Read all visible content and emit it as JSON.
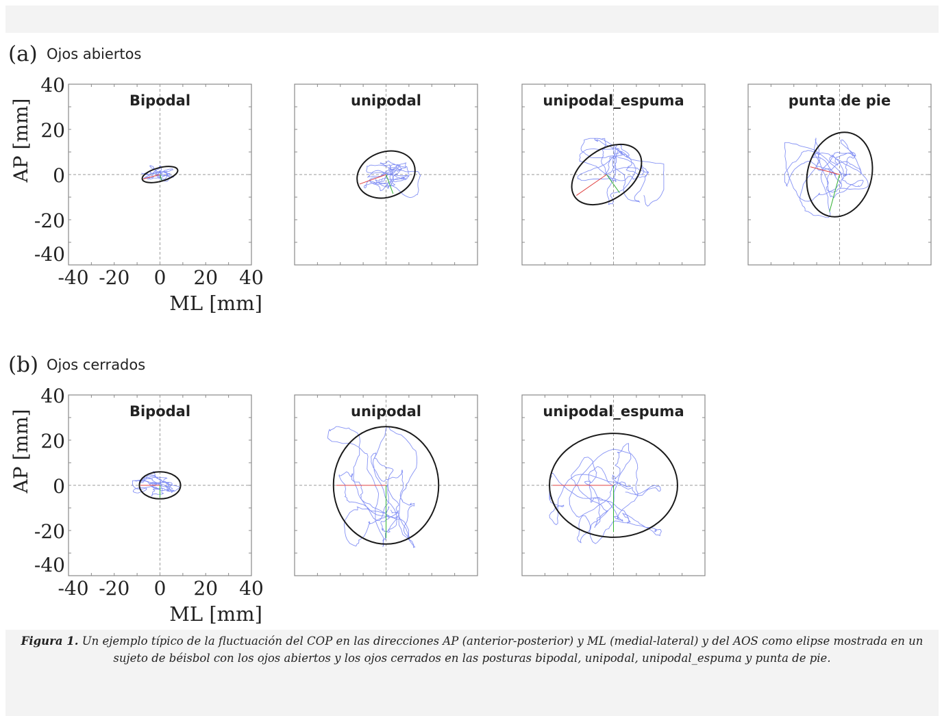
{
  "figure": {
    "caption_label": "Figura 1.",
    "caption_text": " Un ejemplo típico de la fluctuación del COP en las direcciones AP (anterior-posterior) y ML (medial-lateral) y del AOS como elipse mostrada en un sujeto de béisbol con los ojos abiertos y los ojos cerrados en las posturas bipodal, unipodal, unipodal_espuma y punta de pie."
  },
  "colors": {
    "trace": "#5b6cf0",
    "ellipse": "#1a1a1a",
    "axes": "#888888",
    "crosshair": "#9a9a9a",
    "marker_red": "#e04040",
    "marker_green": "#30b030"
  },
  "chart_data": [
    {
      "row": "a",
      "row_prefix": "(a)",
      "row_title": "Ojos abiertos",
      "ylabel": "AP [mm]",
      "xlabel": "ML [mm]",
      "xlim": [
        -40,
        40
      ],
      "ylim": [
        -40,
        40
      ],
      "xticks": [
        "-40",
        "-20",
        "0",
        "20",
        "40"
      ],
      "yticks": [
        "40",
        "20",
        "0",
        "-20",
        "-40"
      ],
      "grid": false,
      "panels": [
        {
          "type": "scatter",
          "title": "Bipodal",
          "ellipse": {
            "cx": 0,
            "cy": 0,
            "rx": 8,
            "ry": 3,
            "angle_deg": 15
          },
          "trace_extent": {
            "ml": [
              -8,
              6
            ],
            "ap": [
              -3,
              4
            ]
          }
        },
        {
          "type": "scatter",
          "title": "unipodal",
          "ellipse": {
            "cx": 0,
            "cy": 0,
            "rx": 13,
            "ry": 10,
            "angle_deg": 20
          },
          "trace_extent": {
            "ml": [
              -13,
              15
            ],
            "ap": [
              -11,
              13
            ]
          }
        },
        {
          "type": "scatter",
          "title": "unipodal_espuma",
          "ellipse": {
            "cx": -3,
            "cy": 0,
            "rx": 17,
            "ry": 11,
            "angle_deg": 35
          },
          "trace_extent": {
            "ml": [
              -18,
              22
            ],
            "ap": [
              -14,
              16
            ]
          }
        },
        {
          "type": "scatter",
          "title": "punta de pie",
          "ellipse": {
            "cx": 0,
            "cy": 0,
            "rx": 14,
            "ry": 19,
            "angle_deg": -15
          },
          "trace_extent": {
            "ml": [
              -24,
              17
            ],
            "ap": [
              -21,
              17
            ]
          }
        }
      ]
    },
    {
      "row": "b",
      "row_prefix": "(b)",
      "row_title": "Ojos cerrados",
      "ylabel": "AP [mm]",
      "xlabel": "ML [mm]",
      "xlim": [
        -40,
        40
      ],
      "ylim": [
        -40,
        40
      ],
      "xticks": [
        "-40",
        "-20",
        "0",
        "20",
        "40"
      ],
      "yticks": [
        "40",
        "20",
        "0",
        "-20",
        "-40"
      ],
      "grid": false,
      "panels": [
        {
          "type": "scatter",
          "title": "Bipodal",
          "ellipse": {
            "cx": 0,
            "cy": 0,
            "rx": 9,
            "ry": 6,
            "angle_deg": 0
          },
          "trace_extent": {
            "ml": [
              -12,
              10
            ],
            "ap": [
              -6,
              7
            ]
          }
        },
        {
          "type": "scatter",
          "title": "unipodal",
          "ellipse": {
            "cx": 0,
            "cy": 0,
            "rx": 23,
            "ry": 26,
            "angle_deg": 0
          },
          "trace_extent": {
            "ml": [
              -26,
              22
            ],
            "ap": [
              -34,
              26
            ]
          }
        },
        {
          "type": "scatter",
          "title": "unipodal_espuma",
          "ellipse": {
            "cx": 0,
            "cy": 0,
            "rx": 28,
            "ry": 23,
            "angle_deg": 0
          },
          "trace_extent": {
            "ml": [
              -28,
              22
            ],
            "ap": [
              -34,
              22
            ]
          }
        }
      ]
    }
  ]
}
